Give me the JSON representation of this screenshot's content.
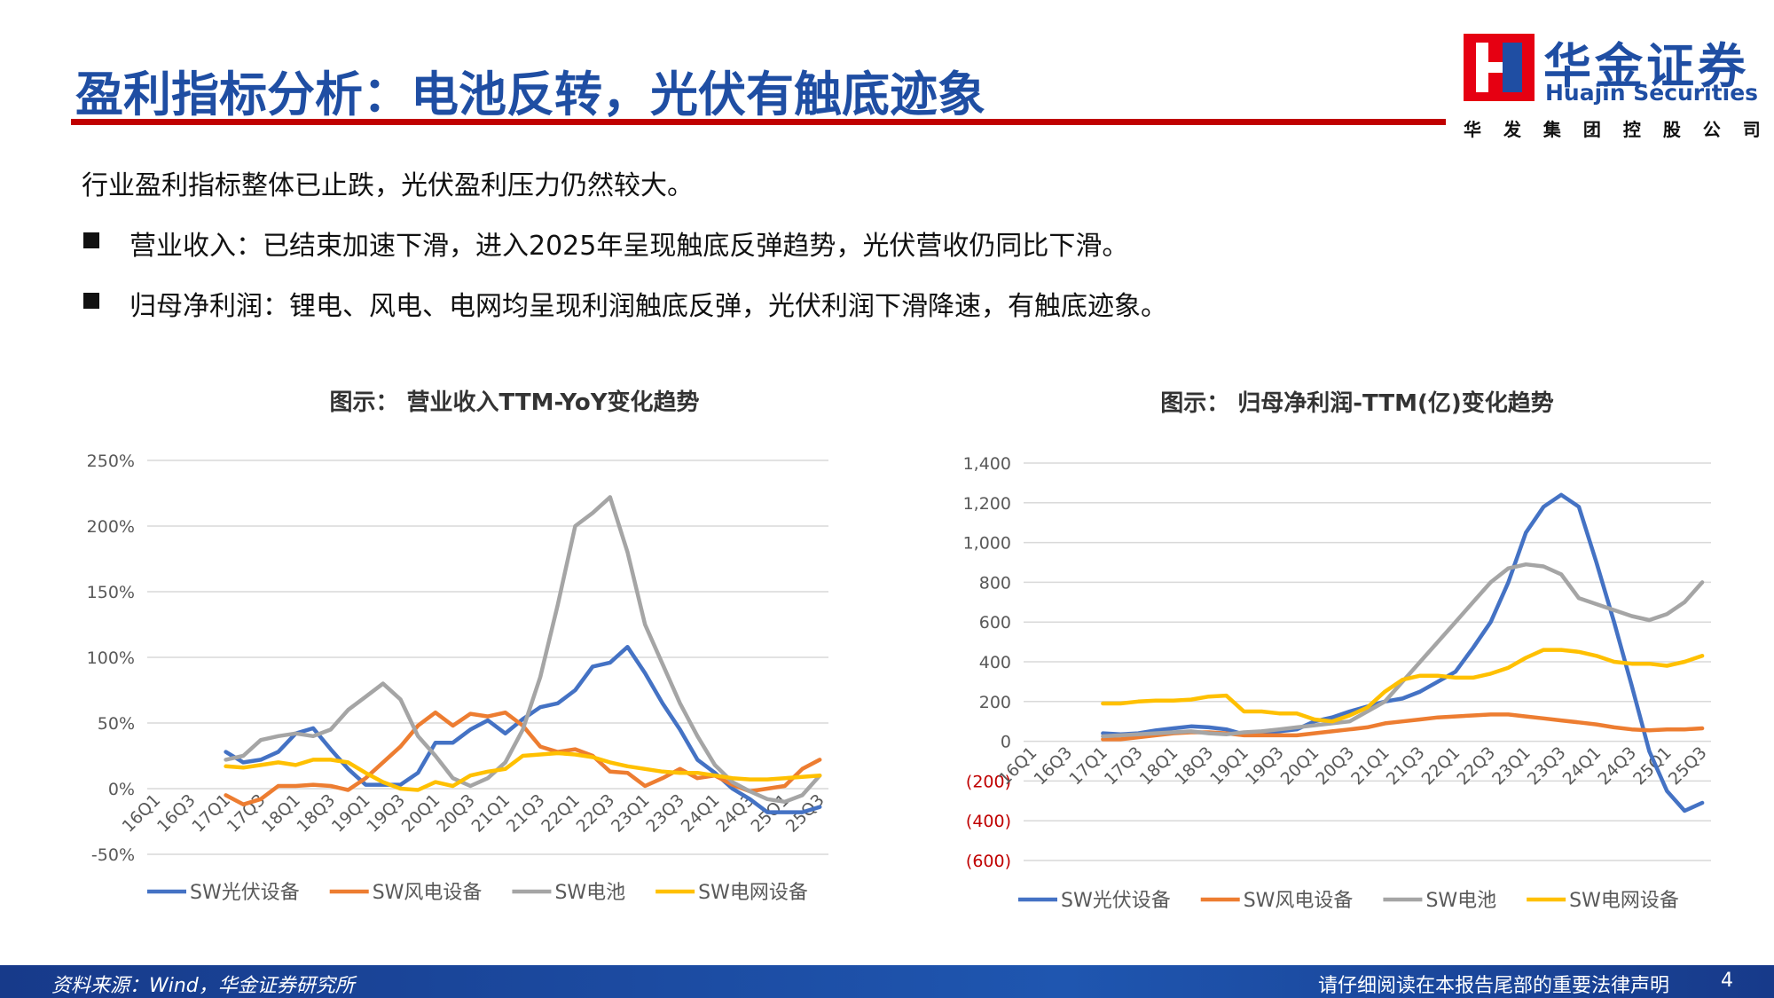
{
  "header": {
    "title": "盈利指标分析：电池反转，光伏有触底迹象",
    "logo_name": "华金证券",
    "logo_english": "Huajin Securities",
    "logo_subtitle": "华 发 集 团 控 股 公 司"
  },
  "intro": "行业盈利指标整体已止跌，光伏盈利压力仍然较大。",
  "bullets": [
    "营业收入：已结束加速下滑，进入2025年呈现触底反弹趋势，光伏营收仍同比下滑。",
    "归母净利润：锂电、风电、电网均呈现利润触底反弹，光伏利润下滑降速，有触底迹象。"
  ],
  "footer": {
    "source": "资料来源：Wind，华金证券研究所",
    "disclaimer": "请仔细阅读在本报告尾部的重要法律声明",
    "page": "4"
  },
  "chart_data": [
    {
      "type": "line",
      "title": "图示：   营业收入TTM-YoY变化趋势",
      "categories": [
        "16Q1",
        null,
        "16Q3",
        null,
        "17Q1",
        null,
        "17Q3",
        null,
        "18Q1",
        null,
        "18Q3",
        null,
        "19Q1",
        null,
        "19Q3",
        null,
        "20Q1",
        null,
        "20Q3",
        null,
        "21Q1",
        null,
        "21Q3",
        null,
        "22Q1",
        null,
        "22Q3",
        null,
        "23Q1",
        null,
        "23Q3",
        null,
        "24Q1",
        null,
        "24Q3",
        null,
        "25Q1",
        null,
        "25Q3"
      ],
      "ylim": [
        -50,
        250
      ],
      "yticks": [
        {
          "value": -50,
          "label": "-50%"
        },
        {
          "value": 0,
          "label": "0%"
        },
        {
          "value": 50,
          "label": "50%"
        },
        {
          "value": 100,
          "label": "100%"
        },
        {
          "value": 150,
          "label": "150%"
        },
        {
          "value": 200,
          "label": "200%"
        },
        {
          "value": 250,
          "label": "250%"
        }
      ],
      "grid": true,
      "legend": "bottom",
      "series": [
        {
          "name": "SW光伏设备",
          "color": "#4472c4",
          "values": [
            null,
            null,
            null,
            null,
            28,
            20,
            22,
            28,
            42,
            46,
            30,
            15,
            3,
            3,
            3,
            12,
            35,
            35,
            45,
            52,
            42,
            53,
            62,
            65,
            75,
            93,
            96,
            108,
            88,
            65,
            45,
            22,
            12,
            0,
            -8,
            -18,
            -18,
            -18,
            -14
          ]
        },
        {
          "name": "SW风电设备",
          "color": "#ed7d31",
          "values": [
            null,
            null,
            null,
            null,
            -5,
            -12,
            -8,
            2,
            2,
            3,
            2,
            -1,
            8,
            20,
            32,
            48,
            58,
            48,
            57,
            55,
            58,
            48,
            32,
            28,
            30,
            25,
            13,
            12,
            2,
            8,
            15,
            8,
            10,
            3,
            -2,
            0,
            2,
            15,
            22
          ]
        },
        {
          "name": "SW电池",
          "color": "#a5a5a5",
          "values": [
            null,
            null,
            null,
            null,
            22,
            25,
            37,
            40,
            42,
            40,
            45,
            60,
            70,
            80,
            68,
            40,
            25,
            8,
            2,
            8,
            20,
            45,
            85,
            140,
            200,
            210,
            222,
            180,
            125,
            95,
            65,
            40,
            18,
            5,
            -2,
            -8,
            -10,
            -5,
            10
          ]
        },
        {
          "name": "SW电网设备",
          "color": "#ffc000",
          "values": [
            null,
            null,
            null,
            null,
            17,
            16,
            18,
            20,
            18,
            22,
            22,
            20,
            12,
            5,
            0,
            -1,
            5,
            2,
            10,
            13,
            15,
            25,
            26,
            27,
            26,
            24,
            20,
            17,
            15,
            13,
            12,
            12,
            10,
            8,
            7,
            7,
            8,
            9,
            10
          ]
        }
      ]
    },
    {
      "type": "line",
      "title": "图示：   归母净利润-TTM(亿)变化趋势",
      "categories": [
        "16Q1",
        null,
        "16Q3",
        null,
        "17Q1",
        null,
        "17Q3",
        null,
        "18Q1",
        null,
        "18Q3",
        null,
        "19Q1",
        null,
        "19Q3",
        null,
        "20Q1",
        null,
        "20Q3",
        null,
        "21Q1",
        null,
        "21Q3",
        null,
        "22Q1",
        null,
        "22Q3",
        null,
        "23Q1",
        null,
        "23Q3",
        null,
        "24Q1",
        null,
        "24Q3",
        null,
        "25Q1",
        null,
        "25Q3"
      ],
      "ylim": [
        -600,
        1400
      ],
      "yticks": [
        {
          "value": -600,
          "label": "(600)"
        },
        {
          "value": -400,
          "label": "(400)"
        },
        {
          "value": -200,
          "label": "(200)"
        },
        0,
        200,
        400,
        600,
        800,
        {
          "value": 1000,
          "label": "1,000"
        },
        {
          "value": 1200,
          "label": "1,200"
        },
        {
          "value": 1400,
          "label": "1,400"
        }
      ],
      "grid": true,
      "legend": "bottom",
      "negative_tick_color": "#c00000",
      "series": [
        {
          "name": "SW光伏设备",
          "color": "#4472c4",
          "values": [
            null,
            null,
            null,
            null,
            40,
            35,
            40,
            55,
            65,
            75,
            70,
            60,
            35,
            40,
            50,
            60,
            100,
            120,
            150,
            175,
            200,
            215,
            250,
            300,
            350,
            470,
            600,
            800,
            1050,
            1180,
            1240,
            1180,
            900,
            600,
            280,
            -50,
            -250,
            -350,
            -310
          ]
        },
        {
          "name": "SW风电设备",
          "color": "#ed7d31",
          "values": [
            null,
            null,
            null,
            null,
            10,
            10,
            20,
            30,
            40,
            45,
            45,
            40,
            30,
            30,
            30,
            30,
            40,
            50,
            60,
            70,
            90,
            100,
            110,
            120,
            125,
            130,
            135,
            135,
            125,
            115,
            105,
            95,
            85,
            70,
            60,
            55,
            60,
            60,
            65
          ]
        },
        {
          "name": "SW电池",
          "color": "#a5a5a5",
          "values": [
            null,
            null,
            null,
            null,
            25,
            30,
            35,
            40,
            45,
            50,
            40,
            35,
            45,
            50,
            60,
            70,
            80,
            90,
            100,
            150,
            200,
            300,
            400,
            500,
            600,
            700,
            800,
            870,
            890,
            880,
            840,
            720,
            690,
            660,
            630,
            610,
            640,
            700,
            800
          ]
        },
        {
          "name": "SW电网设备",
          "color": "#ffc000",
          "values": [
            null,
            null,
            null,
            null,
            190,
            190,
            200,
            205,
            205,
            210,
            225,
            230,
            150,
            150,
            140,
            140,
            110,
            100,
            130,
            170,
            250,
            310,
            330,
            330,
            320,
            320,
            340,
            370,
            420,
            460,
            460,
            450,
            430,
            400,
            390,
            390,
            380,
            400,
            430
          ]
        }
      ]
    }
  ]
}
